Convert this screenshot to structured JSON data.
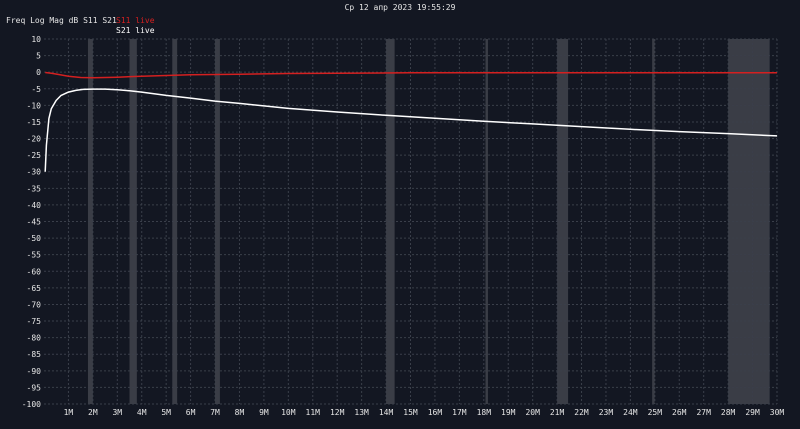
{
  "header": {
    "timestamp": "Ср 12 апр 2023 19:55:29",
    "trace_info": "Freq Log Mag dB S11 S21"
  },
  "chart_data": {
    "type": "line",
    "title": "",
    "xlabel": "",
    "ylabel": "",
    "xlim": [
      0,
      30
    ],
    "ylim": [
      -100,
      10
    ],
    "grid": true,
    "legend_position": "top-left",
    "x_ticks": [
      {
        "value": 1,
        "label": "1M"
      },
      {
        "value": 2,
        "label": "2M"
      },
      {
        "value": 3,
        "label": "3M"
      },
      {
        "value": 4,
        "label": "4M"
      },
      {
        "value": 5,
        "label": "5M"
      },
      {
        "value": 6,
        "label": "6M"
      },
      {
        "value": 7,
        "label": "7M"
      },
      {
        "value": 8,
        "label": "8M"
      },
      {
        "value": 9,
        "label": "9M"
      },
      {
        "value": 10,
        "label": "10M"
      },
      {
        "value": 11,
        "label": "11M"
      },
      {
        "value": 12,
        "label": "12M"
      },
      {
        "value": 13,
        "label": "13M"
      },
      {
        "value": 14,
        "label": "14M"
      },
      {
        "value": 15,
        "label": "15M"
      },
      {
        "value": 16,
        "label": "16M"
      },
      {
        "value": 17,
        "label": "17M"
      },
      {
        "value": 18,
        "label": "18M"
      },
      {
        "value": 19,
        "label": "19M"
      },
      {
        "value": 20,
        "label": "20M"
      },
      {
        "value": 21,
        "label": "21M"
      },
      {
        "value": 22,
        "label": "22M"
      },
      {
        "value": 23,
        "label": "23M"
      },
      {
        "value": 24,
        "label": "24M"
      },
      {
        "value": 25,
        "label": "25M"
      },
      {
        "value": 26,
        "label": "26M"
      },
      {
        "value": 27,
        "label": "27M"
      },
      {
        "value": 28,
        "label": "28M"
      },
      {
        "value": 29,
        "label": "29M"
      },
      {
        "value": 30,
        "label": "30M"
      }
    ],
    "y_ticks": [
      10,
      5,
      0,
      -5,
      -10,
      -15,
      -20,
      -25,
      -30,
      -35,
      -40,
      -45,
      -50,
      -55,
      -60,
      -65,
      -70,
      -75,
      -80,
      -85,
      -90,
      -95,
      -100
    ],
    "bands_mhz": [
      [
        1.8,
        2.0
      ],
      [
        3.5,
        3.8
      ],
      [
        5.25,
        5.45
      ],
      [
        7.0,
        7.2
      ],
      [
        14.0,
        14.35
      ],
      [
        18.07,
        18.17
      ],
      [
        21.0,
        21.45
      ],
      [
        24.89,
        24.99
      ],
      [
        28.0,
        29.7
      ]
    ],
    "colors": {
      "background": "#131722",
      "grid": "#3a3f4a",
      "band": "#3a3d46",
      "s11": "#d42020",
      "s21": "#ffffff",
      "text": "#e6e6e6"
    },
    "series": [
      {
        "name": "S11 live",
        "x": [
          0.05,
          0.3,
          0.6,
          1.0,
          1.5,
          2.0,
          2.5,
          3.0,
          4.0,
          5.0,
          6.0,
          8.0,
          10.0,
          12.0,
          15.0,
          20.0,
          25.0,
          30.0
        ],
        "values": [
          -0.1,
          -0.3,
          -0.7,
          -1.2,
          -1.6,
          -1.7,
          -1.6,
          -1.5,
          -1.2,
          -1.0,
          -0.8,
          -0.6,
          -0.4,
          -0.3,
          -0.2,
          -0.2,
          -0.2,
          -0.2
        ]
      },
      {
        "name": "S21 live",
        "x": [
          0.05,
          0.1,
          0.2,
          0.3,
          0.5,
          0.7,
          1.0,
          1.3,
          1.6,
          2.0,
          2.5,
          3.0,
          3.5,
          4.0,
          5.0,
          6.0,
          7.0,
          8.0,
          10.0,
          12.0,
          14.0,
          16.0,
          18.0,
          20.0,
          22.0,
          24.0,
          26.0,
          28.0,
          30.0
        ],
        "values": [
          -30.0,
          -22.0,
          -14.0,
          -11.0,
          -8.5,
          -7.0,
          -6.0,
          -5.5,
          -5.2,
          -5.1,
          -5.1,
          -5.3,
          -5.6,
          -6.0,
          -7.0,
          -7.8,
          -8.7,
          -9.4,
          -10.9,
          -12.0,
          -13.0,
          -13.9,
          -14.8,
          -15.6,
          -16.4,
          -17.2,
          -17.9,
          -18.5,
          -19.2
        ]
      }
    ]
  }
}
